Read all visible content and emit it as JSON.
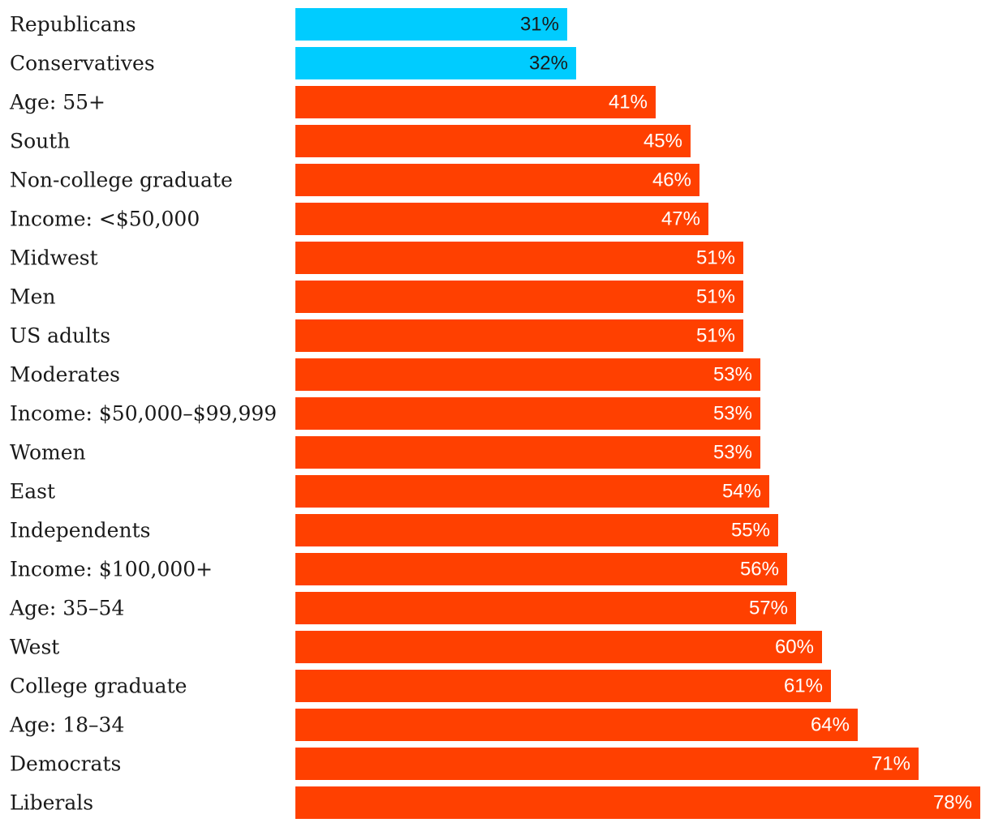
{
  "colors": {
    "highlight": "#00CCFF",
    "accent": "#FF4000",
    "highlight_text": "#1a1a1a",
    "accent_text": "#ffffff",
    "label_text": "#1a1a1a"
  },
  "chart_data": {
    "type": "bar",
    "orientation": "horizontal",
    "title": "",
    "xlabel": "",
    "ylabel": "",
    "xlim": [
      0,
      78
    ],
    "grid": false,
    "value_suffix": "%",
    "highlighted_categories": [
      "Republicans",
      "Conservatives"
    ],
    "categories": [
      "Republicans",
      "Conservatives",
      "Age: 55+",
      "South",
      "Non-college graduate",
      "Income: <$50,000",
      "Midwest",
      "Men",
      "US adults",
      "Moderates",
      "Income: $50,000–$99,999",
      "Women",
      "East",
      "Independents",
      "Income: $100,000+",
      "Age: 35–54",
      "West",
      "College graduate",
      "Age: 18–34",
      "Democrats",
      "Liberals"
    ],
    "values": [
      31,
      32,
      41,
      45,
      46,
      47,
      51,
      51,
      51,
      53,
      53,
      53,
      54,
      55,
      56,
      57,
      60,
      61,
      64,
      71,
      78
    ],
    "value_labels": [
      "31%",
      "32%",
      "41%",
      "45%",
      "46%",
      "47%",
      "51%",
      "51%",
      "51%",
      "53%",
      "53%",
      "53%",
      "54%",
      "55%",
      "56%",
      "57%",
      "60%",
      "61%",
      "64%",
      "71%",
      "78%"
    ]
  }
}
